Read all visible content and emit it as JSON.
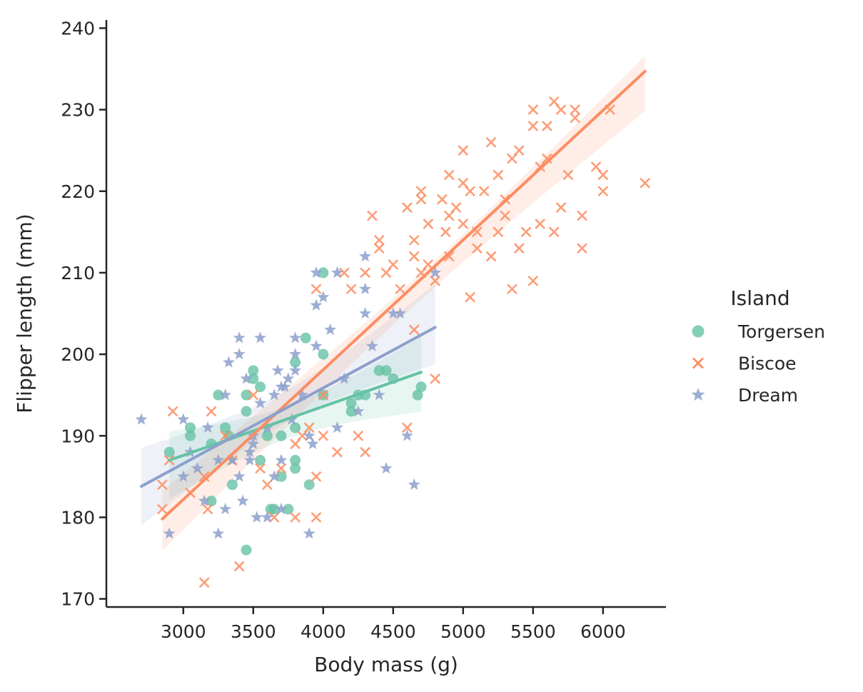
{
  "chart_data": {
    "type": "scatter",
    "xlabel": "Body mass (g)",
    "ylabel": "Flipper length (mm)",
    "xlim": [
      2450,
      6450
    ],
    "ylim": [
      169,
      241
    ],
    "xticks": [
      3000,
      3500,
      4000,
      4500,
      5000,
      5500,
      6000
    ],
    "yticks": [
      170,
      180,
      190,
      200,
      210,
      220,
      230,
      240
    ],
    "grid": false,
    "legend": {
      "title": "Island",
      "placement": "right"
    },
    "series": [
      {
        "name": "Torgersen",
        "marker": "circle",
        "color": "#66c2a5",
        "regression": {
          "x": [
            2900,
            4700
          ],
          "y": [
            187.0,
            197.8
          ]
        },
        "points": [
          [
            2900,
            188
          ],
          [
            3050,
            191
          ],
          [
            3050,
            190
          ],
          [
            3200,
            182
          ],
          [
            3250,
            195
          ],
          [
            3300,
            191
          ],
          [
            3325,
            190
          ],
          [
            3350,
            184
          ],
          [
            3450,
            195
          ],
          [
            3450,
            193
          ],
          [
            3450,
            176
          ],
          [
            3500,
            198
          ],
          [
            3500,
            197
          ],
          [
            3550,
            196
          ],
          [
            3550,
            187
          ],
          [
            3600,
            190
          ],
          [
            3625,
            181
          ],
          [
            3650,
            181
          ],
          [
            3700,
            190
          ],
          [
            3700,
            185
          ],
          [
            3750,
            181
          ],
          [
            3800,
            199
          ],
          [
            3800,
            191
          ],
          [
            3800,
            187
          ],
          [
            3800,
            186
          ],
          [
            3875,
            202
          ],
          [
            3900,
            184
          ],
          [
            4000,
            210
          ],
          [
            4000,
            195
          ],
          [
            4000,
            200
          ],
          [
            4200,
            194
          ],
          [
            4200,
            193
          ],
          [
            4250,
            195
          ],
          [
            4300,
            195
          ],
          [
            4400,
            198
          ],
          [
            4450,
            198
          ],
          [
            4500,
            197
          ],
          [
            4675,
            195
          ],
          [
            4700,
            196
          ],
          [
            3200,
            189
          ]
        ]
      },
      {
        "name": "Biscoe",
        "marker": "x",
        "color": "#fc8d62",
        "regression": {
          "x": [
            2850,
            6300
          ],
          "y": [
            179.8,
            234.7
          ]
        },
        "points": [
          [
            2850,
            184
          ],
          [
            2850,
            181
          ],
          [
            2900,
            187
          ],
          [
            2925,
            193
          ],
          [
            3050,
            183
          ],
          [
            3150,
            172
          ],
          [
            3150,
            185
          ],
          [
            3175,
            181
          ],
          [
            3200,
            193
          ],
          [
            3300,
            190
          ],
          [
            3350,
            187
          ],
          [
            3400,
            174
          ],
          [
            3500,
            195
          ],
          [
            3550,
            186
          ],
          [
            3600,
            184
          ],
          [
            3650,
            180
          ],
          [
            3700,
            186
          ],
          [
            3800,
            189
          ],
          [
            3800,
            180
          ],
          [
            3850,
            190
          ],
          [
            3900,
            191
          ],
          [
            3950,
            185
          ],
          [
            3950,
            180
          ],
          [
            3950,
            208
          ],
          [
            4000,
            190
          ],
          [
            4000,
            195
          ],
          [
            4100,
            188
          ],
          [
            4150,
            210
          ],
          [
            4200,
            208
          ],
          [
            4250,
            190
          ],
          [
            4300,
            188
          ],
          [
            4300,
            210
          ],
          [
            4350,
            217
          ],
          [
            4400,
            213
          ],
          [
            4450,
            210
          ],
          [
            4500,
            211
          ],
          [
            4550,
            208
          ],
          [
            4600,
            218
          ],
          [
            4600,
            191
          ],
          [
            4650,
            212
          ],
          [
            4650,
            214
          ],
          [
            4700,
            219
          ],
          [
            4700,
            210
          ],
          [
            4750,
            216
          ],
          [
            4750,
            211
          ],
          [
            4800,
            209
          ],
          [
            4850,
            219
          ],
          [
            4875,
            215
          ],
          [
            4900,
            217
          ],
          [
            4900,
            212
          ],
          [
            4950,
            218
          ],
          [
            5000,
            225
          ],
          [
            5000,
            216
          ],
          [
            5050,
            207
          ],
          [
            5050,
            220
          ],
          [
            5100,
            215
          ],
          [
            5100,
            213
          ],
          [
            5150,
            220
          ],
          [
            5200,
            212
          ],
          [
            5200,
            226
          ],
          [
            5250,
            222
          ],
          [
            5250,
            215
          ],
          [
            5300,
            217
          ],
          [
            5300,
            219
          ],
          [
            5350,
            208
          ],
          [
            5350,
            224
          ],
          [
            5400,
            213
          ],
          [
            5400,
            225
          ],
          [
            5450,
            215
          ],
          [
            5500,
            228
          ],
          [
            5500,
            230
          ],
          [
            5500,
            209
          ],
          [
            5550,
            223
          ],
          [
            5550,
            216
          ],
          [
            5600,
            228
          ],
          [
            5600,
            224
          ],
          [
            5650,
            231
          ],
          [
            5650,
            215
          ],
          [
            5700,
            218
          ],
          [
            5700,
            230
          ],
          [
            5750,
            222
          ],
          [
            5800,
            230
          ],
          [
            5800,
            229
          ],
          [
            5850,
            213
          ],
          [
            5850,
            217
          ],
          [
            5950,
            223
          ],
          [
            6000,
            220
          ],
          [
            6000,
            222
          ],
          [
            6050,
            230
          ],
          [
            6300,
            221
          ],
          [
            4700,
            220
          ],
          [
            5000,
            221
          ],
          [
            4900,
            222
          ],
          [
            4400,
            214
          ],
          [
            4650,
            203
          ],
          [
            4800,
            197
          ]
        ]
      },
      {
        "name": "Dream",
        "marker": "star",
        "color": "#8da0cb",
        "regression": {
          "x": [
            2700,
            4800
          ],
          "y": [
            183.8,
            203.3
          ]
        },
        "points": [
          [
            2700,
            192
          ],
          [
            2900,
            178
          ],
          [
            3000,
            192
          ],
          [
            3000,
            185
          ],
          [
            3050,
            188
          ],
          [
            3100,
            186
          ],
          [
            3150,
            182
          ],
          [
            3175,
            191
          ],
          [
            3250,
            178
          ],
          [
            3250,
            187
          ],
          [
            3300,
            195
          ],
          [
            3300,
            181
          ],
          [
            3325,
            199
          ],
          [
            3350,
            187
          ],
          [
            3400,
            202
          ],
          [
            3400,
            200
          ],
          [
            3400,
            185
          ],
          [
            3425,
            182
          ],
          [
            3450,
            197
          ],
          [
            3475,
            187
          ],
          [
            3500,
            190
          ],
          [
            3500,
            189
          ],
          [
            3525,
            180
          ],
          [
            3550,
            202
          ],
          [
            3550,
            194
          ],
          [
            3600,
            191
          ],
          [
            3600,
            180
          ],
          [
            3650,
            195
          ],
          [
            3650,
            185
          ],
          [
            3675,
            198
          ],
          [
            3700,
            187
          ],
          [
            3700,
            181
          ],
          [
            3700,
            196
          ],
          [
            3725,
            196
          ],
          [
            3750,
            197
          ],
          [
            3775,
            192
          ],
          [
            3800,
            202
          ],
          [
            3800,
            200
          ],
          [
            3800,
            198
          ],
          [
            3850,
            195
          ],
          [
            3900,
            190
          ],
          [
            3900,
            178
          ],
          [
            3925,
            189
          ],
          [
            3950,
            210
          ],
          [
            3950,
            206
          ],
          [
            3950,
            201
          ],
          [
            4000,
            207
          ],
          [
            4050,
            203
          ],
          [
            4100,
            210
          ],
          [
            4100,
            191
          ],
          [
            4150,
            197
          ],
          [
            4250,
            193
          ],
          [
            4300,
            212
          ],
          [
            4300,
            205
          ],
          [
            4300,
            208
          ],
          [
            4350,
            201
          ],
          [
            4400,
            195
          ],
          [
            4450,
            186
          ],
          [
            4500,
            205
          ],
          [
            4550,
            205
          ],
          [
            4600,
            190
          ],
          [
            4650,
            184
          ],
          [
            4800,
            210
          ],
          [
            3475,
            188
          ]
        ]
      }
    ]
  }
}
